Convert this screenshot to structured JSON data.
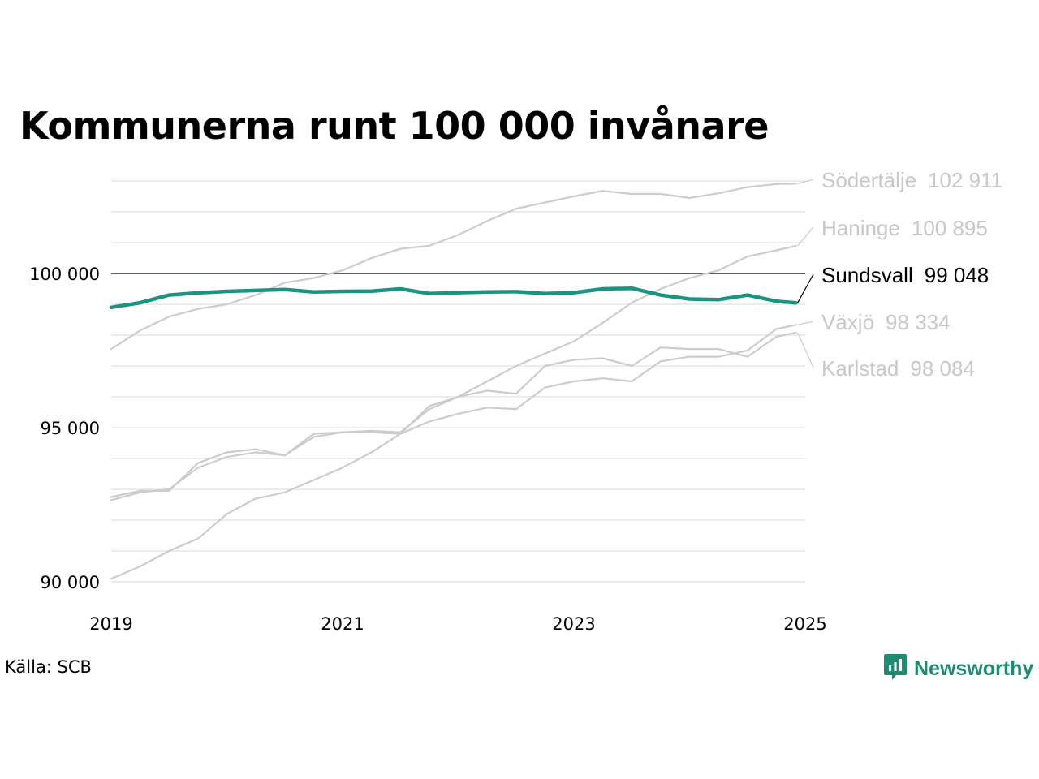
{
  "title": "Kommunerna runt 100 000 invånare",
  "source": "Källa: SCB",
  "brand": {
    "name": "Newsworthy",
    "icon": "newsworthy-logo-icon",
    "color": "#1e8c72"
  },
  "colors": {
    "highlight": "#1a9380",
    "other": "#cccccc",
    "other_label": "#c8c8c8",
    "grid": "#e6e6e6",
    "reference": "#000000"
  },
  "chart_data": {
    "type": "line",
    "title": "Kommunerna runt 100 000 invånare",
    "xlabel": "",
    "ylabel": "",
    "xlim": [
      2019.0,
      2025.0
    ],
    "ylim": [
      90000,
      103000
    ],
    "x_ticks": [
      {
        "value": 2019,
        "label": "2019"
      },
      {
        "value": 2021,
        "label": "2021"
      },
      {
        "value": 2023,
        "label": "2023"
      },
      {
        "value": 2025,
        "label": "2025"
      }
    ],
    "y_ticks": [
      {
        "value": 90000,
        "label": "90 000"
      },
      {
        "value": 95000,
        "label": "95 000"
      },
      {
        "value": 100000,
        "label": "100 000"
      }
    ],
    "reference_line": 100000,
    "grid": true,
    "legend": "direct labels at right",
    "series": [
      {
        "name": "Södertälje",
        "end_label": "102 911",
        "highlight": false,
        "points": [
          [
            2019.0,
            97550
          ],
          [
            2019.25,
            98150
          ],
          [
            2019.5,
            98600
          ],
          [
            2019.75,
            98850
          ],
          [
            2020.0,
            99000
          ],
          [
            2020.25,
            99300
          ],
          [
            2020.5,
            99700
          ],
          [
            2020.75,
            99850
          ],
          [
            2021.0,
            100100
          ],
          [
            2021.25,
            100500
          ],
          [
            2021.5,
            100800
          ],
          [
            2021.75,
            100900
          ],
          [
            2022.0,
            101250
          ],
          [
            2022.25,
            101700
          ],
          [
            2022.5,
            102100
          ],
          [
            2022.75,
            102300
          ],
          [
            2023.0,
            102500
          ],
          [
            2023.25,
            102680
          ],
          [
            2023.5,
            102580
          ],
          [
            2023.75,
            102580
          ],
          [
            2024.0,
            102450
          ],
          [
            2024.25,
            102600
          ],
          [
            2024.5,
            102800
          ],
          [
            2024.75,
            102900
          ],
          [
            2024.92,
            102911
          ]
        ]
      },
      {
        "name": "Haninge",
        "end_label": "100 895",
        "highlight": false,
        "points": [
          [
            2019.0,
            90100
          ],
          [
            2019.25,
            90500
          ],
          [
            2019.5,
            91000
          ],
          [
            2019.75,
            91400
          ],
          [
            2020.0,
            92200
          ],
          [
            2020.25,
            92700
          ],
          [
            2020.5,
            92900
          ],
          [
            2020.75,
            93300
          ],
          [
            2021.0,
            93700
          ],
          [
            2021.25,
            94200
          ],
          [
            2021.5,
            94800
          ],
          [
            2021.75,
            95700
          ],
          [
            2022.0,
            96000
          ],
          [
            2022.25,
            96500
          ],
          [
            2022.5,
            97000
          ],
          [
            2022.75,
            97400
          ],
          [
            2023.0,
            97800
          ],
          [
            2023.25,
            98400
          ],
          [
            2023.5,
            99050
          ],
          [
            2023.75,
            99500
          ],
          [
            2024.0,
            99850
          ],
          [
            2024.25,
            100100
          ],
          [
            2024.5,
            100550
          ],
          [
            2024.75,
            100750
          ],
          [
            2024.92,
            100895
          ]
        ]
      },
      {
        "name": "Sundsvall",
        "end_label": "99 048",
        "highlight": true,
        "points": [
          [
            2019.0,
            98900
          ],
          [
            2019.25,
            99050
          ],
          [
            2019.5,
            99300
          ],
          [
            2019.75,
            99370
          ],
          [
            2020.0,
            99420
          ],
          [
            2020.25,
            99450
          ],
          [
            2020.5,
            99480
          ],
          [
            2020.75,
            99400
          ],
          [
            2021.0,
            99420
          ],
          [
            2021.25,
            99430
          ],
          [
            2021.5,
            99500
          ],
          [
            2021.75,
            99350
          ],
          [
            2022.0,
            99380
          ],
          [
            2022.25,
            99400
          ],
          [
            2022.5,
            99410
          ],
          [
            2022.75,
            99350
          ],
          [
            2023.0,
            99380
          ],
          [
            2023.25,
            99500
          ],
          [
            2023.5,
            99520
          ],
          [
            2023.75,
            99300
          ],
          [
            2024.0,
            99170
          ],
          [
            2024.25,
            99150
          ],
          [
            2024.5,
            99300
          ],
          [
            2024.75,
            99100
          ],
          [
            2024.92,
            99048
          ]
        ]
      },
      {
        "name": "Växjö",
        "end_label": "98 334",
        "highlight": false,
        "points": [
          [
            2019.0,
            92650
          ],
          [
            2019.25,
            92900
          ],
          [
            2019.5,
            93000
          ],
          [
            2019.75,
            93700
          ],
          [
            2020.0,
            94050
          ],
          [
            2020.25,
            94200
          ],
          [
            2020.5,
            94100
          ],
          [
            2020.75,
            94700
          ],
          [
            2021.0,
            94850
          ],
          [
            2021.25,
            94850
          ],
          [
            2021.5,
            94800
          ],
          [
            2021.75,
            95200
          ],
          [
            2022.0,
            95450
          ],
          [
            2022.25,
            95650
          ],
          [
            2022.5,
            95600
          ],
          [
            2022.75,
            96300
          ],
          [
            2023.0,
            96500
          ],
          [
            2023.25,
            96600
          ],
          [
            2023.5,
            96500
          ],
          [
            2023.75,
            97150
          ],
          [
            2024.0,
            97300
          ],
          [
            2024.25,
            97300
          ],
          [
            2024.5,
            97500
          ],
          [
            2024.75,
            98200
          ],
          [
            2024.92,
            98334
          ]
        ]
      },
      {
        "name": "Karlstad",
        "end_label": "98 084",
        "highlight": false,
        "points": [
          [
            2019.0,
            92750
          ],
          [
            2019.25,
            92950
          ],
          [
            2019.5,
            92950
          ],
          [
            2019.75,
            93850
          ],
          [
            2020.0,
            94200
          ],
          [
            2020.25,
            94300
          ],
          [
            2020.5,
            94100
          ],
          [
            2020.75,
            94800
          ],
          [
            2021.0,
            94850
          ],
          [
            2021.25,
            94900
          ],
          [
            2021.5,
            94850
          ],
          [
            2021.75,
            95600
          ],
          [
            2022.0,
            96000
          ],
          [
            2022.25,
            96200
          ],
          [
            2022.5,
            96100
          ],
          [
            2022.75,
            97000
          ],
          [
            2023.0,
            97200
          ],
          [
            2023.25,
            97250
          ],
          [
            2023.5,
            97000
          ],
          [
            2023.75,
            97600
          ],
          [
            2024.0,
            97550
          ],
          [
            2024.25,
            97550
          ],
          [
            2024.5,
            97300
          ],
          [
            2024.75,
            97950
          ],
          [
            2024.92,
            98084
          ]
        ]
      }
    ]
  }
}
